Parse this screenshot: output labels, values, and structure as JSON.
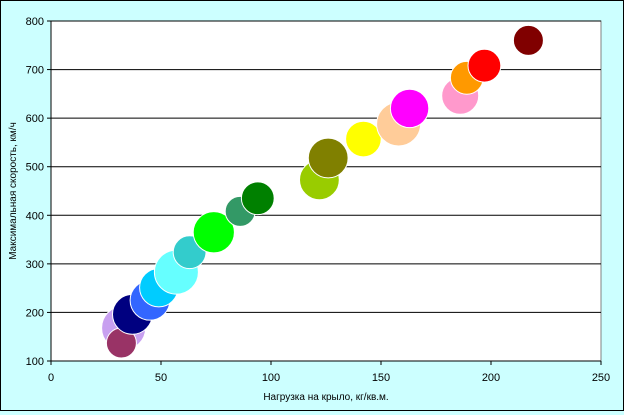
{
  "chart_data": {
    "type": "scatter",
    "title": "",
    "xlabel": "Нагрузка на крыло, кг/кв.м.",
    "ylabel": "Максимальная скорость, км/ч",
    "xlim": [
      0,
      250
    ],
    "ylim": [
      100,
      800
    ],
    "x_ticks": [
      "0",
      "50",
      "100",
      "150",
      "200",
      "250"
    ],
    "y_ticks": [
      "100",
      "200",
      "300",
      "400",
      "500",
      "600",
      "700",
      "800"
    ],
    "grid": "horizontal",
    "legend": "none",
    "plot_background": "#ffffff",
    "page_background": "#ccffff",
    "points": [
      {
        "x": 33,
        "y": 168,
        "size": 1.0,
        "color": "#c8a0f0"
      },
      {
        "x": 32,
        "y": 137,
        "size": 0.5,
        "color": "#993366"
      },
      {
        "x": 37,
        "y": 196,
        "size": 0.85,
        "color": "#000080"
      },
      {
        "x": 45,
        "y": 225,
        "size": 0.85,
        "color": "#3366ff"
      },
      {
        "x": 49,
        "y": 251,
        "size": 0.8,
        "color": "#00ccff"
      },
      {
        "x": 57,
        "y": 283,
        "size": 1.0,
        "color": "#66ffff"
      },
      {
        "x": 63,
        "y": 324,
        "size": 0.6,
        "color": "#33cccc"
      },
      {
        "x": 74,
        "y": 365,
        "size": 0.9,
        "color": "#00ff00"
      },
      {
        "x": 86,
        "y": 408,
        "size": 0.5,
        "color": "#339966"
      },
      {
        "x": 94,
        "y": 435,
        "size": 0.6,
        "color": "#008000"
      },
      {
        "x": 122,
        "y": 473,
        "size": 0.85,
        "color": "#99cc00"
      },
      {
        "x": 126,
        "y": 518,
        "size": 0.85,
        "color": "#808000"
      },
      {
        "x": 142,
        "y": 557,
        "size": 0.7,
        "color": "#ffff00"
      },
      {
        "x": 158,
        "y": 588,
        "size": 1.0,
        "color": "#ffcc99"
      },
      {
        "x": 163,
        "y": 620,
        "size": 0.8,
        "color": "#ff00ff"
      },
      {
        "x": 186,
        "y": 646,
        "size": 0.75,
        "color": "#ff99cc"
      },
      {
        "x": 189,
        "y": 683,
        "size": 0.6,
        "color": "#ff9900"
      },
      {
        "x": 197,
        "y": 708,
        "size": 0.6,
        "color": "#ff0000"
      },
      {
        "x": 217,
        "y": 760,
        "size": 0.5,
        "color": "#800000"
      }
    ]
  }
}
